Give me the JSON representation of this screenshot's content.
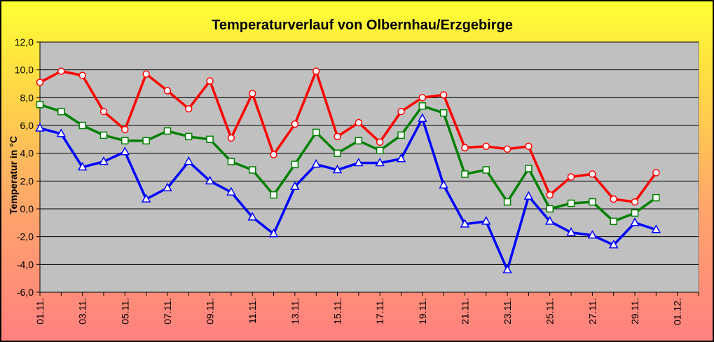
{
  "chart_data": {
    "type": "line",
    "title": "Temperaturverlauf von Olbernhau/Erzgebirge",
    "ylabel": "Temperatur in °C",
    "xlabel": "",
    "ylim": [
      -6,
      12
    ],
    "ytick_labels": [
      "-6,0",
      "-4,0",
      "-2,0",
      "0,0",
      "2,0",
      "4,0",
      "6,0",
      "8,0",
      "10,0",
      "12,0"
    ],
    "xtick_labels": [
      "01.11.",
      "03.11.",
      "05.11.",
      "07.11.",
      "09.11.",
      "11.11.",
      "13.11.",
      "15.11.",
      "17.11.",
      "19.11.",
      "21.11.",
      "23.11.",
      "25.11.",
      "27.11.",
      "29.11.",
      "01.12."
    ],
    "x": [
      1,
      2,
      3,
      4,
      5,
      6,
      7,
      8,
      9,
      10,
      11,
      12,
      13,
      14,
      15,
      16,
      17,
      18,
      19,
      20,
      21,
      22,
      23,
      24,
      25,
      26,
      27,
      28,
      29,
      30
    ],
    "grid": true,
    "plot_background": "#c0c0c0",
    "series": [
      {
        "color": "#ff0000",
        "marker": "circle",
        "values": [
          9.1,
          9.9,
          9.6,
          7.0,
          5.7,
          9.7,
          8.5,
          7.2,
          9.2,
          5.1,
          8.3,
          3.9,
          6.1,
          9.9,
          5.2,
          6.2,
          4.8,
          7.0,
          8.0,
          8.2,
          4.4,
          4.5,
          4.3,
          4.5,
          1.0,
          2.3,
          2.5,
          0.7,
          0.5,
          2.6
        ]
      },
      {
        "color": "#008000",
        "marker": "square",
        "values": [
          7.5,
          7.0,
          6.0,
          5.3,
          4.9,
          4.9,
          5.6,
          5.2,
          5.0,
          3.4,
          2.8,
          1.0,
          3.2,
          5.5,
          4.0,
          4.9,
          4.2,
          5.3,
          7.4,
          6.9,
          2.5,
          2.8,
          0.5,
          2.9,
          0.0,
          0.4,
          0.5,
          -0.9,
          -0.3,
          0.8
        ]
      },
      {
        "color": "#0000ff",
        "marker": "triangle",
        "values": [
          5.8,
          5.4,
          3.0,
          3.4,
          4.1,
          0.7,
          1.5,
          3.4,
          2.0,
          1.2,
          -0.6,
          -1.8,
          1.6,
          3.2,
          2.8,
          3.3,
          3.3,
          3.6,
          6.5,
          1.7,
          -1.1,
          -0.9,
          -4.4,
          0.9,
          -0.9,
          -1.7,
          -1.9,
          -2.6,
          -1.0,
          -1.5
        ]
      }
    ]
  }
}
